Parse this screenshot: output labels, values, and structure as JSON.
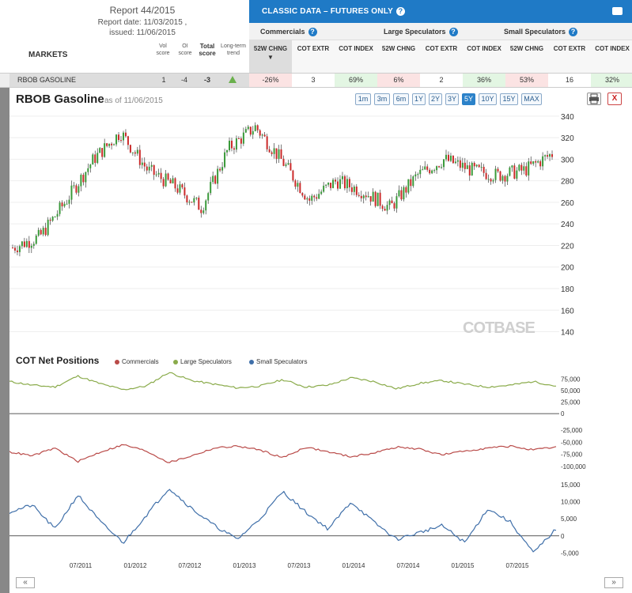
{
  "report": {
    "title": "Report 44/2015",
    "date": "Report date: 11/03/2015 ,",
    "issued": "issued: 11/06/2015",
    "markets_label": "MARKETS",
    "vol_score": "Vol score",
    "oi_score": "OI score",
    "total_score": "Total score",
    "long_term": "Long-term trend"
  },
  "classic": {
    "title": "CLASSIC DATA – FUTURES ONLY",
    "help": "?",
    "groups": [
      "Commercials",
      "Large Speculators",
      "Small Speculators"
    ],
    "columns": [
      "52W CHNG",
      "COT EXTR",
      "COT INDEX",
      "52W CHNG",
      "COT EXTR",
      "COT INDEX",
      "52W CHNG",
      "COT EXTR",
      "COT INDEX"
    ]
  },
  "row": {
    "name": "RBOB GASOLINE",
    "vol": "1",
    "oi": "-4",
    "total": "-3",
    "cells": [
      "-26%",
      "3",
      "69%",
      "6%",
      "2",
      "36%",
      "53%",
      "16",
      "32%"
    ],
    "cell_colors": [
      "red",
      "white",
      "green",
      "red",
      "white",
      "green",
      "red",
      "white",
      "green"
    ]
  },
  "chart": {
    "title": "RBOB Gasoline",
    "asof": "as of 11/06/2015",
    "ranges": [
      "1m",
      "3m",
      "6m",
      "1Y",
      "2Y",
      "3Y",
      "5Y",
      "10Y",
      "15Y",
      "MAX"
    ],
    "active_range": "5Y",
    "close": "X",
    "watermark": "COTBASE"
  },
  "cot": {
    "title": "COT Net Positions",
    "legend": [
      {
        "name": "Commercials",
        "color": "#b94a48"
      },
      {
        "name": "Large Speculators",
        "color": "#8aab4b"
      },
      {
        "name": "Small Speculators",
        "color": "#3f6fa9"
      }
    ]
  },
  "nav": {
    "prev": "«",
    "next": "»"
  },
  "chart_data": [
    {
      "type": "line",
      "title": "RBOB Gasoline",
      "y_ticks": [
        "340",
        "320",
        "300",
        "280",
        "260",
        "240",
        "220",
        "200",
        "180",
        "160",
        "140"
      ],
      "ylim": [
        125,
        345
      ],
      "x": [
        0,
        3,
        6,
        9,
        12,
        15,
        18,
        21,
        24,
        27,
        30,
        33,
        36,
        39,
        42,
        45,
        48,
        51,
        54,
        57,
        60
      ],
      "values": [
        218,
        228,
        262,
        300,
        325,
        290,
        275,
        255,
        310,
        330,
        298,
        262,
        280,
        270,
        255,
        285,
        300,
        290,
        285,
        290,
        305
      ],
      "grid": true
    },
    {
      "type": "line",
      "title": "COT Net Positions",
      "x_ticks": [
        "07/2011",
        "01/2012",
        "07/2012",
        "01/2013",
        "07/2013",
        "01/2014",
        "07/2014",
        "01/2015",
        "07/2015"
      ],
      "panels": [
        {
          "y_ticks": [
            "75,000",
            "50,000",
            "25,000",
            "0"
          ]
        },
        {
          "y_ticks": [
            "-25,000",
            "-50,000",
            "-75,000",
            "-100,000"
          ]
        },
        {
          "y_ticks": [
            "15,000",
            "10,000",
            "5,000",
            "0",
            "-5,000"
          ]
        }
      ],
      "series": [
        {
          "name": "Large Speculators",
          "values": [
            70000,
            62000,
            58000,
            82000,
            65000,
            52000,
            60000,
            90000,
            72000,
            64000,
            56000,
            60000,
            74000,
            58000,
            62000,
            78000,
            70000,
            54000,
            66000,
            72000,
            64000,
            58000,
            62000,
            70000,
            60000
          ]
        },
        {
          "name": "Commercials",
          "values": [
            -70000,
            -78000,
            -62000,
            -90000,
            -70000,
            -55000,
            -68000,
            -92000,
            -78000,
            -62000,
            -58000,
            -66000,
            -82000,
            -60000,
            -70000,
            -80000,
            -72000,
            -60000,
            -64000,
            -76000,
            -68000,
            -62000,
            -58000,
            -66000,
            -60000
          ]
        },
        {
          "name": "Small Speculators",
          "values": [
            7000,
            9000,
            2000,
            12000,
            4000,
            -2000,
            6000,
            14000,
            8000,
            3000,
            -1000,
            5000,
            13000,
            7000,
            2000,
            10000,
            4000,
            -1000,
            1000,
            3000,
            -2000,
            8000,
            4000,
            -5000,
            2000
          ]
        }
      ]
    }
  ]
}
